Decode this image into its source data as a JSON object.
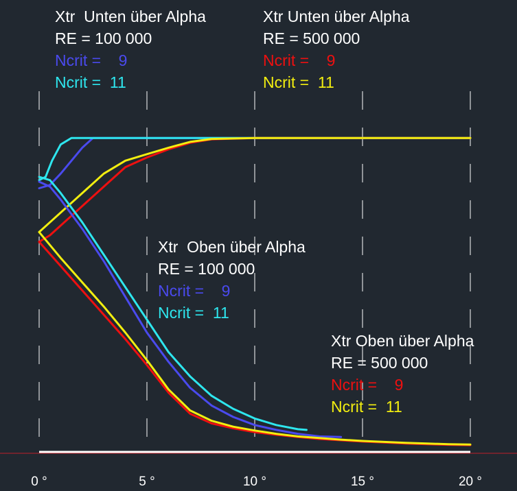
{
  "chart_data": {
    "type": "line",
    "title": "",
    "xlabel": "",
    "ylabel": "",
    "xlim": [
      0,
      20
    ],
    "ylim": [
      0,
      1.0
    ],
    "x_ticks": [
      0,
      5,
      10,
      15,
      20
    ],
    "x_tick_labels": [
      "0 °",
      "5 °",
      "10 °",
      "15 °",
      "20 °"
    ],
    "grid": "vertical dashed",
    "colors": {
      "background": "#212830",
      "grid": "#ffffff",
      "axis": "#ffffff",
      "baseline": "#c0202a",
      "ncrit9_re100k": "#4a4aee",
      "ncrit11_re100k": "#2ee6ee",
      "ncrit9_re500k": "#ee1010",
      "ncrit11_re500k": "#f2ee10"
    },
    "series": [
      {
        "name": "Xtr Unten Ncrit 9 RE 100 000",
        "color": "#4a4aee",
        "x": [
          0,
          0.5,
          1.0,
          1.5,
          2.0,
          2.5,
          3.0,
          5,
          10,
          15,
          20
        ],
        "y": [
          0.815,
          0.825,
          0.86,
          0.9,
          0.94,
          0.97,
          0.97,
          0.97,
          0.97,
          0.97,
          0.97
        ]
      },
      {
        "name": "Xtr Unten Ncrit 11 RE 100 000",
        "color": "#2ee6ee",
        "x": [
          0,
          0.3,
          0.6,
          1.0,
          1.5,
          2.0,
          5,
          10,
          15,
          20
        ],
        "y": [
          0.84,
          0.85,
          0.9,
          0.95,
          0.97,
          0.97,
          0.97,
          0.97,
          0.97,
          0.97
        ]
      },
      {
        "name": "Xtr Unten Ncrit 9 RE 500 000",
        "color": "#ee1010",
        "x": [
          0,
          0.5,
          1.0,
          1.5,
          2.0,
          3.0,
          4.0,
          5.0,
          6.0,
          7.0,
          8.0,
          10,
          15,
          20
        ],
        "y": [
          0.65,
          0.67,
          0.7,
          0.73,
          0.76,
          0.82,
          0.88,
          0.91,
          0.935,
          0.955,
          0.966,
          0.97,
          0.97,
          0.97
        ]
      },
      {
        "name": "Xtr Unten Ncrit 11 RE 500 000",
        "color": "#f2ee10",
        "x": [
          0,
          0.5,
          1.0,
          1.5,
          2.0,
          3.0,
          4.0,
          5.0,
          6.0,
          7.0,
          8.0,
          10,
          15,
          20
        ],
        "y": [
          0.68,
          0.71,
          0.74,
          0.77,
          0.8,
          0.86,
          0.9,
          0.92,
          0.94,
          0.958,
          0.967,
          0.97,
          0.97,
          0.97
        ]
      },
      {
        "name": "Xtr Oben Ncrit 9 RE 100 000",
        "color": "#4a4aee",
        "x": [
          0,
          0.5,
          1.0,
          2.0,
          3.0,
          4.0,
          5.0,
          6.0,
          7.0,
          8.0,
          9.0,
          10.0,
          11.0,
          12.0,
          13.0,
          14.0
        ],
        "y": [
          0.835,
          0.82,
          0.78,
          0.69,
          0.59,
          0.48,
          0.37,
          0.28,
          0.2,
          0.145,
          0.11,
          0.085,
          0.07,
          0.058,
          0.05,
          0.048
        ]
      },
      {
        "name": "Xtr Oben Ncrit 11 RE 100 000",
        "color": "#2ee6ee",
        "x": [
          0,
          0.5,
          1.0,
          2.0,
          3.0,
          4.0,
          5.0,
          6.0,
          7.0,
          8.0,
          9.0,
          10.0,
          11.0,
          12.0,
          12.4
        ],
        "y": [
          0.85,
          0.84,
          0.8,
          0.71,
          0.61,
          0.51,
          0.41,
          0.31,
          0.235,
          0.175,
          0.135,
          0.105,
          0.085,
          0.072,
          0.07
        ]
      },
      {
        "name": "Xtr Oben Ncrit 9 RE 500 000",
        "color": "#ee1010",
        "x": [
          0,
          1,
          2,
          3,
          4,
          5,
          6,
          7,
          8,
          9,
          10,
          11,
          12,
          13,
          14,
          15,
          16,
          17,
          18,
          19,
          20
        ],
        "y": [
          0.65,
          0.575,
          0.5,
          0.425,
          0.35,
          0.27,
          0.185,
          0.12,
          0.09,
          0.075,
          0.063,
          0.055,
          0.048,
          0.042,
          0.038,
          0.034,
          0.031,
          0.028,
          0.026,
          0.024,
          0.023
        ]
      },
      {
        "name": "Xtr Oben Ncrit 11 RE 500 000",
        "color": "#f2ee10",
        "x": [
          0,
          1,
          2,
          3,
          4,
          5,
          6,
          7,
          8,
          9,
          10,
          11,
          12,
          13,
          14,
          15,
          16,
          17,
          18,
          19,
          20
        ],
        "y": [
          0.68,
          0.6,
          0.525,
          0.45,
          0.37,
          0.285,
          0.195,
          0.13,
          0.098,
          0.08,
          0.068,
          0.058,
          0.05,
          0.045,
          0.04,
          0.036,
          0.033,
          0.03,
          0.028,
          0.026,
          0.025
        ]
      }
    ],
    "annotations": [
      {
        "lines": [
          {
            "text": "Xtr  Unten über Alpha",
            "color": "#ffffff"
          },
          {
            "text": "RE = 100 000",
            "color": "#ffffff"
          },
          {
            "text": "Ncrit =    9",
            "color": "#4a4aee"
          },
          {
            "text": "Ncrit =  11",
            "color": "#2ee6ee"
          }
        ]
      },
      {
        "lines": [
          {
            "text": "Xtr Unten über Alpha",
            "color": "#ffffff"
          },
          {
            "text": "RE = 500 000",
            "color": "#ffffff"
          },
          {
            "text": "Ncrit =    9",
            "color": "#ee1010"
          },
          {
            "text": "Ncrit =  11",
            "color": "#f2ee10"
          }
        ]
      },
      {
        "lines": [
          {
            "text": "Xtr  Oben über Alpha",
            "color": "#ffffff"
          },
          {
            "text": "RE = 100 000",
            "color": "#ffffff"
          },
          {
            "text": "Ncrit =    9",
            "color": "#4a4aee"
          },
          {
            "text": "Ncrit =  11",
            "color": "#2ee6ee"
          }
        ]
      },
      {
        "lines": [
          {
            "text": "Xtr Oben über Alpha",
            "color": "#ffffff"
          },
          {
            "text": "RE = 500 000",
            "color": "#ffffff"
          },
          {
            "text": "Ncrit =    9",
            "color": "#ee1010"
          },
          {
            "text": "Ncrit =  11",
            "color": "#f2ee10"
          }
        ]
      }
    ]
  }
}
